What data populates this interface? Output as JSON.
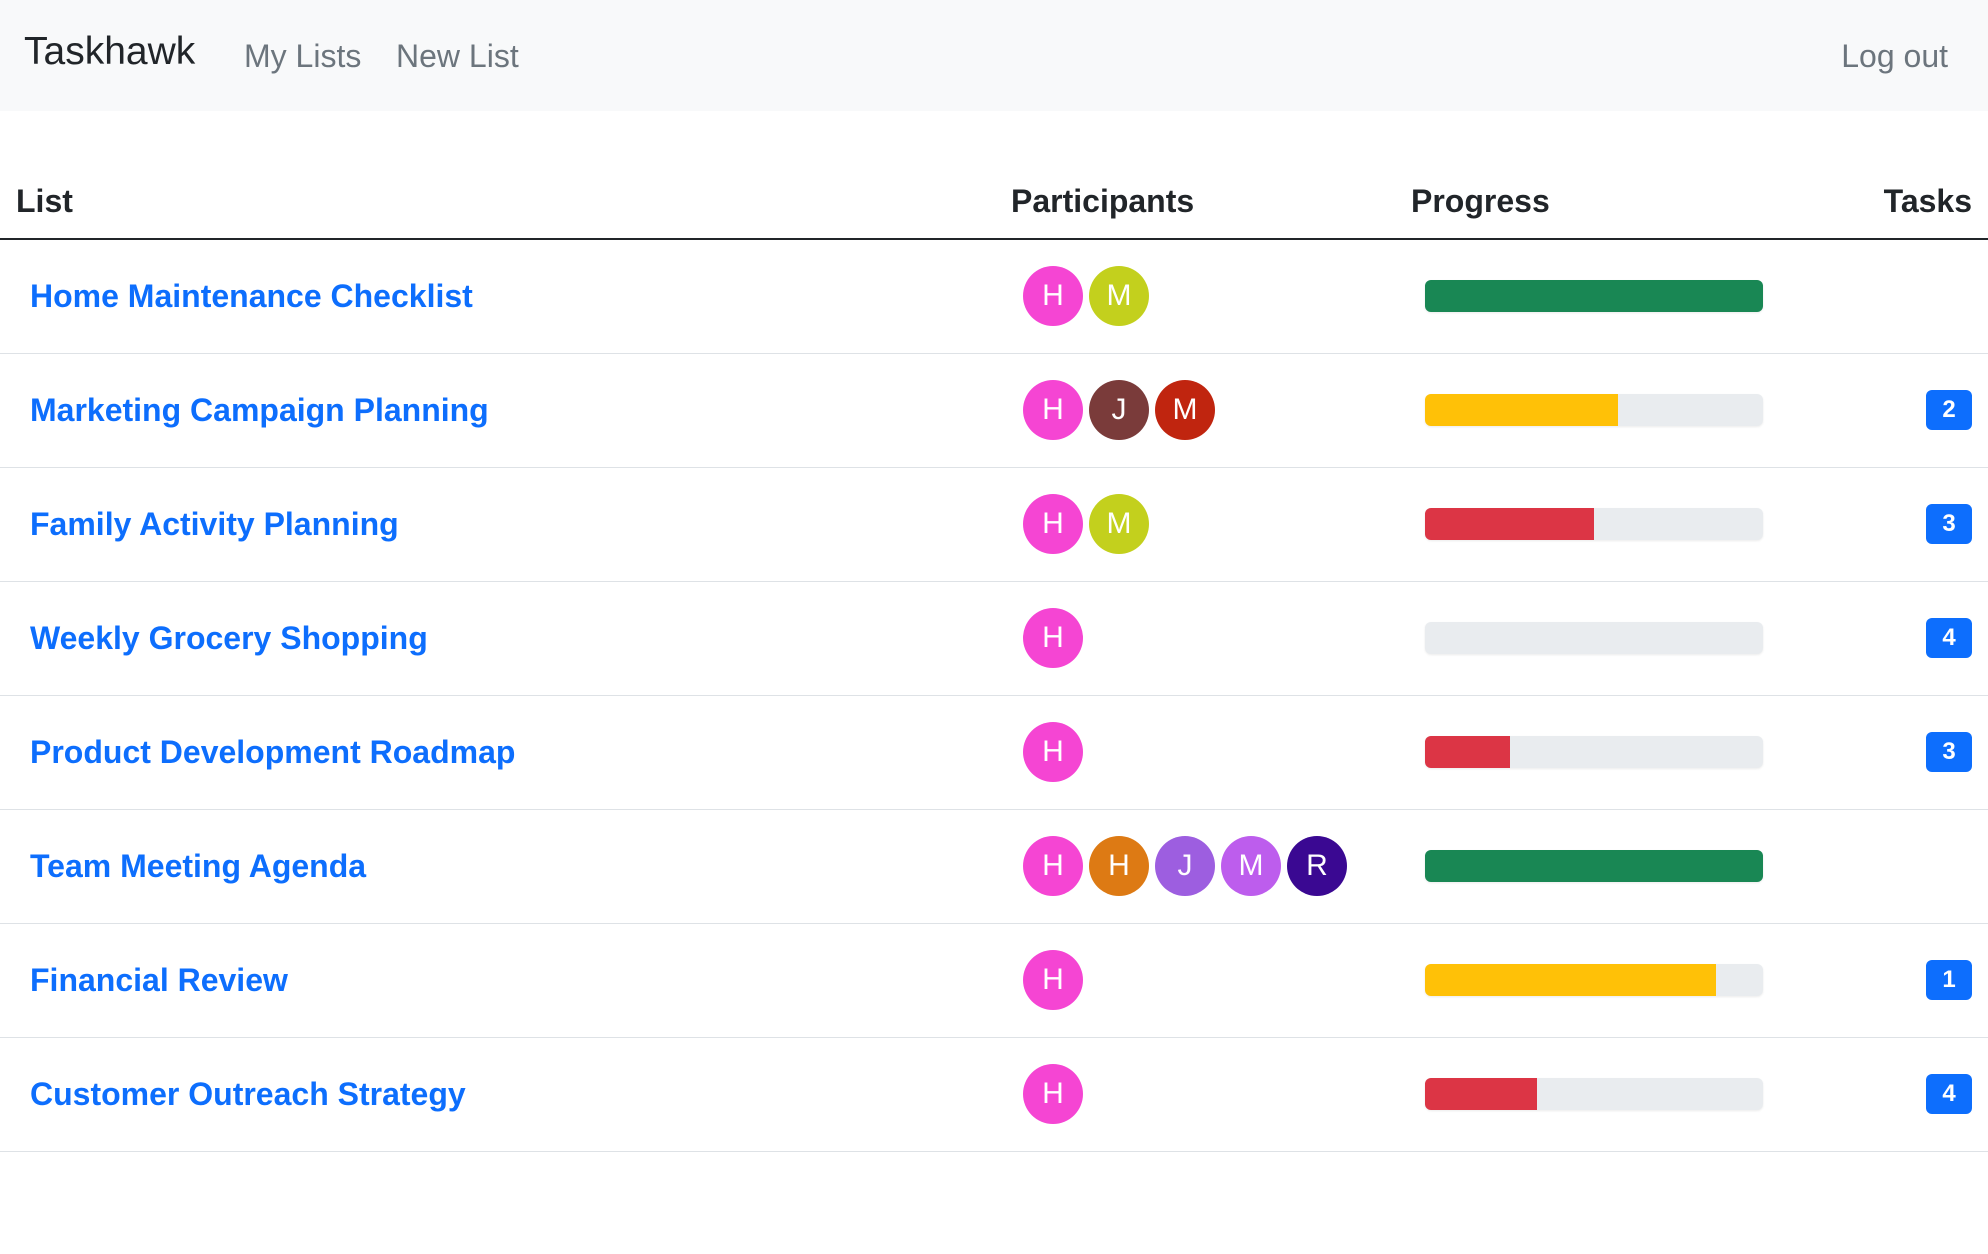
{
  "navbar": {
    "brand": "Taskhawk",
    "links": {
      "my_lists": "My Lists",
      "new_list": "New List"
    },
    "logout": "Log out"
  },
  "table": {
    "headers": {
      "list": "List",
      "participants": "Participants",
      "progress": "Progress",
      "tasks": "Tasks"
    },
    "rows": [
      {
        "name": "Home Maintenance Checklist",
        "participants": [
          {
            "initial": "H",
            "color": "#f545d3"
          },
          {
            "initial": "M",
            "color": "#c3d01d"
          }
        ],
        "progress": 1.0,
        "progress_color": "#198754",
        "tasks": ""
      },
      {
        "name": "Marketing Campaign Planning",
        "participants": [
          {
            "initial": "H",
            "color": "#f545d3"
          },
          {
            "initial": "J",
            "color": "#7a3b3a"
          },
          {
            "initial": "M",
            "color": "#c0250f"
          }
        ],
        "progress": 0.57,
        "progress_color": "#ffc107",
        "tasks": "2"
      },
      {
        "name": "Family Activity Planning",
        "participants": [
          {
            "initial": "H",
            "color": "#f545d3"
          },
          {
            "initial": "M",
            "color": "#c3d01d"
          }
        ],
        "progress": 0.5,
        "progress_color": "#dc3545",
        "tasks": "3"
      },
      {
        "name": "Weekly Grocery Shopping",
        "participants": [
          {
            "initial": "H",
            "color": "#f545d3"
          }
        ],
        "progress": 0.0,
        "progress_color": "#dc3545",
        "tasks": "4"
      },
      {
        "name": "Product Development Roadmap",
        "participants": [
          {
            "initial": "H",
            "color": "#f545d3"
          }
        ],
        "progress": 0.25,
        "progress_color": "#dc3545",
        "tasks": "3"
      },
      {
        "name": "Team Meeting Agenda",
        "participants": [
          {
            "initial": "H",
            "color": "#f545d3"
          },
          {
            "initial": "H",
            "color": "#dd7a14"
          },
          {
            "initial": "J",
            "color": "#9d5ee0"
          },
          {
            "initial": "M",
            "color": "#bd5ded"
          },
          {
            "initial": "R",
            "color": "#3a0892"
          }
        ],
        "progress": 1.0,
        "progress_color": "#198754",
        "tasks": ""
      },
      {
        "name": "Financial Review",
        "participants": [
          {
            "initial": "H",
            "color": "#f545d3"
          }
        ],
        "progress": 0.86,
        "progress_color": "#ffc107",
        "tasks": "1"
      },
      {
        "name": "Customer Outreach Strategy",
        "participants": [
          {
            "initial": "H",
            "color": "#f545d3"
          }
        ],
        "progress": 0.33,
        "progress_color": "#dc3545",
        "tasks": "4"
      }
    ]
  }
}
